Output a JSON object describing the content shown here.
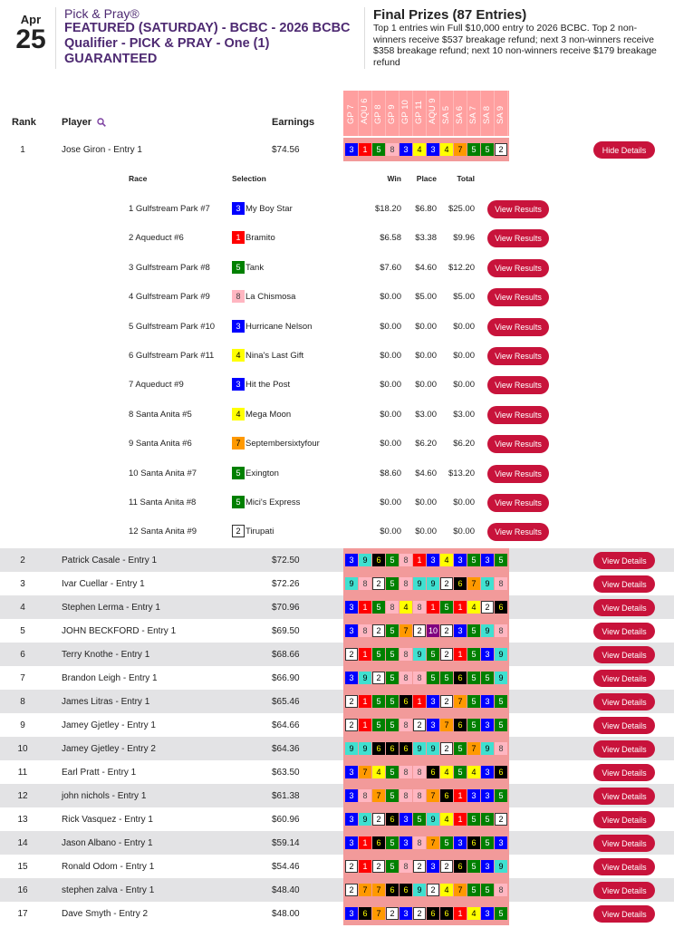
{
  "header": {
    "month": "Apr",
    "day": "25",
    "subtitle": "Pick & Pray®",
    "title": "FEATURED (SATURDAY) - BCBC - 2026 BCBC Qualifier - PICK & PRAY - One (1) GUARANTEED",
    "prizes_title": "Final Prizes (87 Entries)",
    "prizes_text": "Top 1 entries win Full $10,000 entry to 2026 BCBC. Top 2 non-winners receive $537 breakage refund; next 3 non-winners receive $358 breakage refund; next 10 non-winners receive $179 breakage refund"
  },
  "columns": {
    "rank": "Rank",
    "player": "Player",
    "earnings": "Earnings",
    "search_icon": "magnifier-icon"
  },
  "races": [
    "GP 7",
    "AQU 6",
    "GP 8",
    "GP 9",
    "GP 10",
    "GP 11",
    "AQU 9",
    "SA 5",
    "SA 6",
    "SA 7",
    "SA 8",
    "SA 9"
  ],
  "saddle_colors": {
    "1": {
      "bg": "#ff0000",
      "fg": "#ffffff"
    },
    "2": {
      "bg": "#ffffff",
      "fg": "#000000",
      "border": "#333333"
    },
    "3": {
      "bg": "#0000ff",
      "fg": "#ffffff"
    },
    "4": {
      "bg": "#ffff00",
      "fg": "#000000"
    },
    "5": {
      "bg": "#008000",
      "fg": "#ffffff"
    },
    "6": {
      "bg": "#000000",
      "fg": "#ffff00"
    },
    "7": {
      "bg": "#ff9900",
      "fg": "#000000"
    },
    "8": {
      "bg": "#ffb6c1",
      "fg": "#444444"
    },
    "9": {
      "bg": "#40e0d0",
      "fg": "#000000"
    },
    "10": {
      "bg": "#800080",
      "fg": "#ffffff"
    }
  },
  "accent_color": "#c8133b",
  "details": {
    "headers": {
      "race": "Race",
      "selection": "Selection",
      "win": "Win",
      "place": "Place",
      "total": "Total"
    },
    "button_label": "View Results",
    "rows": [
      {
        "race": "1 Gulfstream Park #7",
        "num": "3",
        "horse": "My Boy Star",
        "win": "$18.20",
        "place": "$6.80",
        "total": "$25.00"
      },
      {
        "race": "2 Aqueduct #6",
        "num": "1",
        "horse": "Bramito",
        "win": "$6.58",
        "place": "$3.38",
        "total": "$9.96"
      },
      {
        "race": "3 Gulfstream Park #8",
        "num": "5",
        "horse": "Tank",
        "win": "$7.60",
        "place": "$4.60",
        "total": "$12.20"
      },
      {
        "race": "4 Gulfstream Park #9",
        "num": "8",
        "horse": "La Chismosa",
        "win": "$0.00",
        "place": "$5.00",
        "total": "$5.00"
      },
      {
        "race": "5 Gulfstream Park #10",
        "num": "3",
        "horse": "Hurricane Nelson",
        "win": "$0.00",
        "place": "$0.00",
        "total": "$0.00"
      },
      {
        "race": "6 Gulfstream Park #11",
        "num": "4",
        "horse": "Nina's Last Gift",
        "win": "$0.00",
        "place": "$0.00",
        "total": "$0.00"
      },
      {
        "race": "7 Aqueduct #9",
        "num": "3",
        "horse": "Hit the Post",
        "win": "$0.00",
        "place": "$0.00",
        "total": "$0.00"
      },
      {
        "race": "8 Santa Anita #5",
        "num": "4",
        "horse": "Mega Moon",
        "win": "$0.00",
        "place": "$3.00",
        "total": "$3.00"
      },
      {
        "race": "9 Santa Anita #6",
        "num": "7",
        "horse": "Septembersixtyfour",
        "win": "$0.00",
        "place": "$6.20",
        "total": "$6.20"
      },
      {
        "race": "10 Santa Anita #7",
        "num": "5",
        "horse": "Exington",
        "win": "$8.60",
        "place": "$4.60",
        "total": "$13.20"
      },
      {
        "race": "11 Santa Anita #8",
        "num": "5",
        "horse": "Mici's Express",
        "win": "$0.00",
        "place": "$0.00",
        "total": "$0.00"
      },
      {
        "race": "12 Santa Anita #9",
        "num": "2",
        "horse": "Tirupati",
        "win": "$0.00",
        "place": "$0.00",
        "total": "$0.00"
      }
    ]
  },
  "hide_label": "Hide Details",
  "view_label": "View Details",
  "players": [
    {
      "rank": "1",
      "name": "Jose Giron - Entry 1",
      "earnings": "$74.56",
      "picks": [
        "3",
        "1",
        "5",
        "8",
        "3",
        "4",
        "3",
        "4",
        "7",
        "5",
        "5",
        "2"
      ],
      "expanded": true
    },
    {
      "rank": "2",
      "name": "Patrick Casale - Entry 1",
      "earnings": "$72.50",
      "picks": [
        "3",
        "9",
        "6",
        "5",
        "8",
        "1",
        "3",
        "4",
        "3",
        "5",
        "3",
        "5"
      ]
    },
    {
      "rank": "3",
      "name": "Ivar Cuellar - Entry 1",
      "earnings": "$72.26",
      "picks": [
        "9",
        "8",
        "2",
        "5",
        "8",
        "9",
        "9",
        "2",
        "6",
        "7",
        "9",
        "8"
      ]
    },
    {
      "rank": "4",
      "name": "Stephen Lerma - Entry 1",
      "earnings": "$70.96",
      "picks": [
        "3",
        "1",
        "5",
        "8",
        "4",
        "8",
        "1",
        "5",
        "1",
        "4",
        "2",
        "6"
      ]
    },
    {
      "rank": "5",
      "name": "JOHN BECKFORD - Entry 1",
      "earnings": "$69.50",
      "picks": [
        "3",
        "8",
        "2",
        "5",
        "7",
        "2",
        "10",
        "2",
        "3",
        "5",
        "9",
        "8"
      ]
    },
    {
      "rank": "6",
      "name": "Terry Knothe - Entry 1",
      "earnings": "$68.66",
      "picks": [
        "2",
        "1",
        "5",
        "5",
        "8",
        "9",
        "5",
        "2",
        "1",
        "5",
        "3",
        "9"
      ]
    },
    {
      "rank": "7",
      "name": "Brandon Leigh - Entry 1",
      "earnings": "$66.90",
      "picks": [
        "3",
        "9",
        "2",
        "5",
        "8",
        "8",
        "5",
        "5",
        "6",
        "5",
        "5",
        "9"
      ]
    },
    {
      "rank": "8",
      "name": "James Litras - Entry 1",
      "earnings": "$65.46",
      "picks": [
        "2",
        "1",
        "5",
        "5",
        "6",
        "1",
        "3",
        "2",
        "7",
        "5",
        "3",
        "5"
      ]
    },
    {
      "rank": "9",
      "name": "Jamey Gjetley - Entry 1",
      "earnings": "$64.66",
      "picks": [
        "2",
        "1",
        "5",
        "5",
        "8",
        "2",
        "3",
        "7",
        "6",
        "5",
        "3",
        "5"
      ]
    },
    {
      "rank": "10",
      "name": "Jamey Gjetley - Entry 2",
      "earnings": "$64.36",
      "picks": [
        "9",
        "9",
        "6",
        "6",
        "6",
        "9",
        "9",
        "2",
        "5",
        "7",
        "9",
        "8"
      ]
    },
    {
      "rank": "11",
      "name": "Earl Pratt - Entry 1",
      "earnings": "$63.50",
      "picks": [
        "3",
        "7",
        "4",
        "5",
        "8",
        "8",
        "6",
        "4",
        "5",
        "4",
        "3",
        "6"
      ]
    },
    {
      "rank": "12",
      "name": "john nichols - Entry 1",
      "earnings": "$61.38",
      "picks": [
        "3",
        "8",
        "7",
        "5",
        "8",
        "8",
        "7",
        "6",
        "1",
        "3",
        "3",
        "5"
      ]
    },
    {
      "rank": "13",
      "name": "Rick Vasquez - Entry 1",
      "earnings": "$60.96",
      "picks": [
        "3",
        "9",
        "2",
        "6",
        "3",
        "5",
        "9",
        "4",
        "1",
        "5",
        "5",
        "2"
      ]
    },
    {
      "rank": "14",
      "name": "Jason Albano - Entry 1",
      "earnings": "$59.14",
      "picks": [
        "3",
        "1",
        "6",
        "5",
        "3",
        "8",
        "7",
        "5",
        "3",
        "6",
        "5",
        "3"
      ]
    },
    {
      "rank": "15",
      "name": "Ronald Odom - Entry 1",
      "earnings": "$54.46",
      "picks": [
        "2",
        "1",
        "2",
        "5",
        "8",
        "2",
        "3",
        "2",
        "6",
        "5",
        "3",
        "9"
      ]
    },
    {
      "rank": "16",
      "name": "stephen zalva - Entry 1",
      "earnings": "$48.40",
      "picks": [
        "2",
        "7",
        "7",
        "6",
        "6",
        "9",
        "2",
        "4",
        "7",
        "5",
        "5",
        "8"
      ]
    },
    {
      "rank": "17",
      "name": "Dave Smyth - Entry 2",
      "earnings": "$48.00",
      "picks": [
        "3",
        "6",
        "7",
        "2",
        "3",
        "2",
        "6",
        "6",
        "1",
        "4",
        "3",
        "5"
      ]
    }
  ]
}
